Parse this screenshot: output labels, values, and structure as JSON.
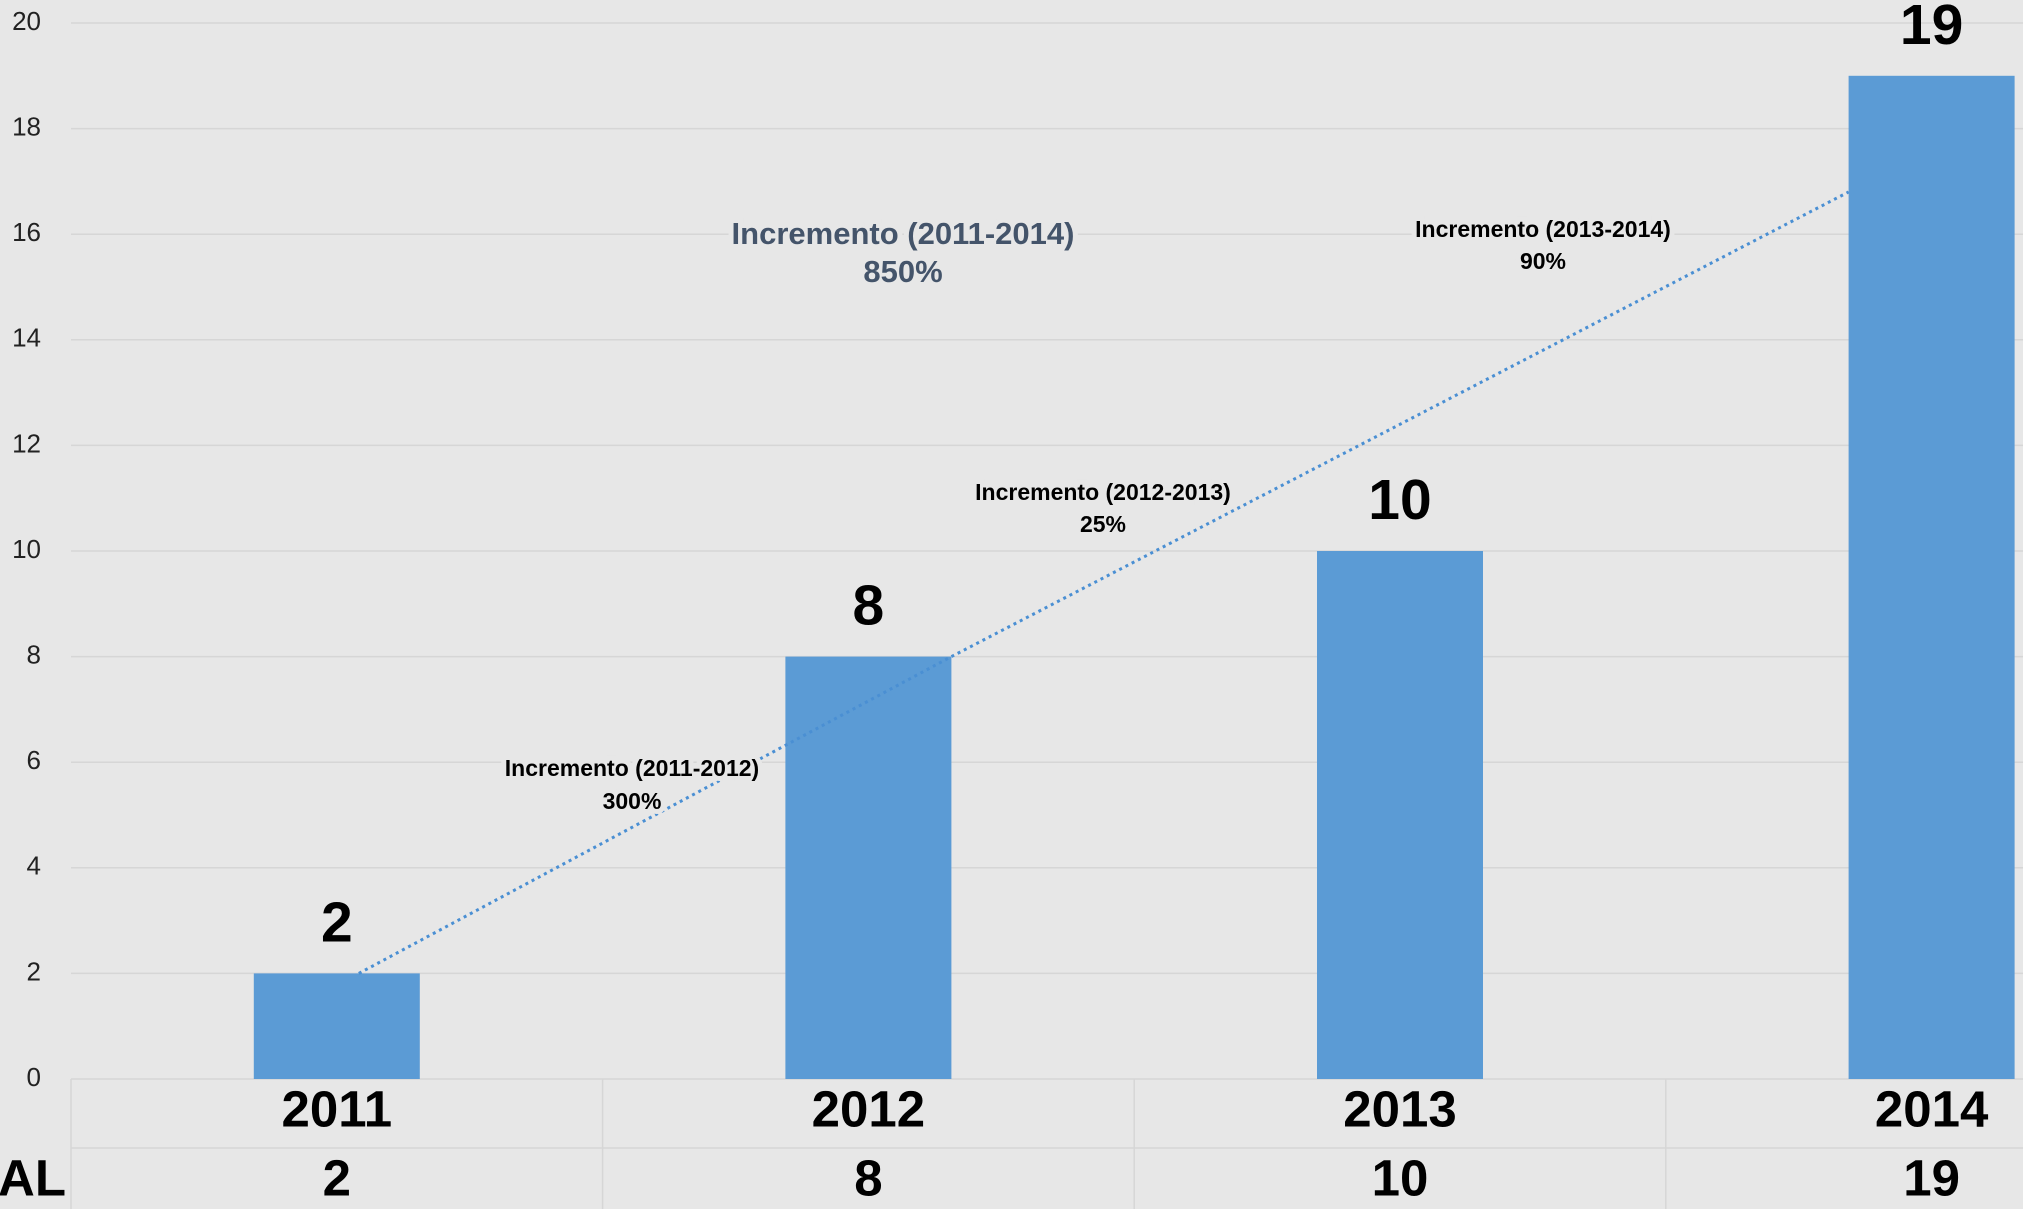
{
  "chart_data": {
    "type": "bar",
    "categories": [
      "2011",
      "2012",
      "2013",
      "2014"
    ],
    "values": [
      2,
      8,
      10,
      19
    ],
    "color": "#5b9bd5",
    "ylim": [
      0,
      20
    ],
    "yticks": [
      0,
      2,
      4,
      6,
      8,
      10,
      12,
      14,
      16,
      18,
      20
    ],
    "grid": true,
    "annotations": [
      {
        "lines": [
          "Incremento (2011-2014)",
          "850%"
        ],
        "color": "#44546a"
      },
      {
        "lines": [
          "Incremento (2011-2012)",
          "300%"
        ],
        "color": "#000000"
      },
      {
        "lines": [
          "Incremento (2012-2013)",
          "25%"
        ],
        "color": "#000000"
      },
      {
        "lines": [
          "Incremento (2013-2014)",
          "90%"
        ],
        "color": "#000000"
      }
    ],
    "data_table": {
      "row_label": "AL"
    }
  }
}
